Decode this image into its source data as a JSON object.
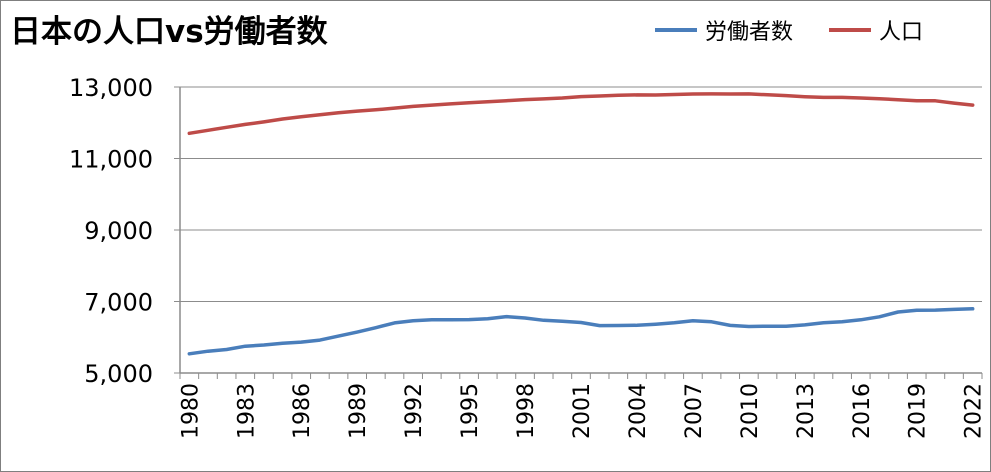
{
  "chart_data": {
    "type": "line",
    "title": "日本の人口vs労働者数",
    "xlabel": "",
    "ylabel": "",
    "ylim": [
      5000,
      13000
    ],
    "yticks": [
      "5,000",
      "7,000",
      "9,000",
      "11,000",
      "13,000"
    ],
    "x": [
      1980,
      1981,
      1982,
      1983,
      1984,
      1985,
      1986,
      1987,
      1988,
      1989,
      1990,
      1991,
      1992,
      1993,
      1994,
      1995,
      1996,
      1997,
      1998,
      1999,
      2000,
      2001,
      2002,
      2003,
      2004,
      2005,
      2006,
      2007,
      2008,
      2009,
      2010,
      2011,
      2012,
      2013,
      2014,
      2015,
      2016,
      2017,
      2018,
      2019,
      2020,
      2021,
      2022
    ],
    "xtick_labels": [
      "1980",
      "1983",
      "1986",
      "1989",
      "1992",
      "1995",
      "1998",
      "2001",
      "2004",
      "2007",
      "2010",
      "2013",
      "2016",
      "2019",
      "2022"
    ],
    "grid": "horizontal",
    "legend_position": "top-right",
    "series": [
      {
        "name": "労働者数",
        "color": "#4a7ebb",
        "values": [
          5536,
          5609,
          5657,
          5750,
          5783,
          5834,
          5863,
          5919,
          6031,
          6144,
          6266,
          6400,
          6460,
          6487,
          6492,
          6493,
          6516,
          6578,
          6538,
          6474,
          6446,
          6412,
          6325,
          6328,
          6335,
          6364,
          6408,
          6463,
          6432,
          6332,
          6301,
          6308,
          6310,
          6346,
          6405,
          6436,
          6488,
          6571,
          6706,
          6756,
          6760,
          6780,
          6795
        ]
      },
      {
        "name": "人口",
        "color": "#be4b48",
        "values": [
          11706,
          11790,
          11873,
          11954,
          12024,
          12105,
          12166,
          12224,
          12278,
          12325,
          12361,
          12410,
          12456,
          12494,
          12527,
          12557,
          12586,
          12616,
          12647,
          12667,
          12693,
          12732,
          12749,
          12769,
          12779,
          12777,
          12790,
          12803,
          12808,
          12803,
          12806,
          12783,
          12759,
          12730,
          12708,
          12709,
          12693,
          12671,
          12644,
          12617,
          12615,
          12550,
          12495
        ]
      }
    ]
  }
}
